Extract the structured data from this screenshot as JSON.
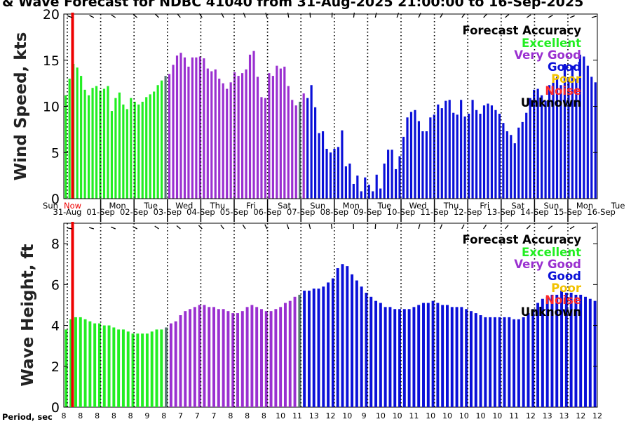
{
  "chart_data": {
    "type": "bar",
    "title": "& Wave Forecast for NDBC 41040 from 31-Aug-2025 21:00:00 to 16-Sep-2025",
    "x_axis": {
      "day_names": [
        "Sun",
        "Mon",
        "Tue",
        "Wed",
        "Thu",
        "Fri",
        "Sat",
        "Sun",
        "Mon",
        "Tue",
        "Wed",
        "Thu",
        "Fri",
        "Sat",
        "Sun",
        "Mon",
        "Tue"
      ],
      "dates": [
        "31-Aug",
        "01-Sep",
        "02-Sep",
        "03-Sep",
        "04-Sep",
        "05-Sep",
        "06-Sep",
        "07-Sep",
        "08-Sep",
        "09-Sep",
        "10-Sep",
        "11-Sep",
        "12-Sep",
        "13-Sep",
        "14-Sep",
        "15-Sep",
        "16-Sep"
      ]
    },
    "legend": {
      "title": "Forecast Accuracy",
      "placement": "top-right",
      "entries": [
        {
          "label": "Excellent",
          "color": "#22ee22"
        },
        {
          "label": "Very Good",
          "color": "#9a30d0"
        },
        {
          "label": "Good",
          "color": "#0a10d8"
        },
        {
          "label": "Poor",
          "color": "#f2c200"
        },
        {
          "label": "Noise",
          "color": "#ff2a2a"
        },
        {
          "label": "Unknown",
          "color": "#000000"
        }
      ]
    },
    "transition_color": "#557a72",
    "now_line_label": "Now",
    "now_line_color": "#ee0000",
    "wind": {
      "ylabel": "Wind Speed, kts",
      "ylim": [
        0,
        20
      ],
      "yticks": [
        0,
        5,
        10,
        15,
        20
      ],
      "values": [
        11.2,
        13,
        14.6,
        14.2,
        13.3,
        11.8,
        11.2,
        12,
        12.2,
        11.7,
        11.9,
        12.2,
        9.5,
        10.9,
        11.5,
        10.2,
        9.7,
        10.9,
        10.5,
        10.2,
        10.5,
        11,
        11.3,
        11.6,
        12.3,
        12.8,
        13.3,
        13.5,
        14.5,
        15.5,
        15.8,
        15.3,
        14.3,
        15.3,
        15.3,
        15.4,
        15.2,
        14.1,
        13.8,
        14,
        13,
        12.5,
        11.9,
        12.6,
        13.7,
        13.3,
        13.6,
        14,
        15.6,
        16,
        13.2,
        11,
        10.9,
        13.6,
        13.3,
        14.4,
        14.1,
        14.3,
        12.2,
        10.7,
        10.1,
        10.5,
        11.4,
        10.9,
        12.3,
        9.9,
        7.1,
        7.3,
        5.4,
        5,
        5.4,
        5.6,
        7.4,
        3.5,
        3.8,
        1.6,
        2.5,
        0.8,
        2.3,
        1.5,
        0.8,
        2.6,
        1.1,
        3.8,
        5.3,
        5.3,
        3.2,
        4.6,
        6.7,
        8.8,
        9.4,
        9.6,
        8.4,
        7.3,
        7.3,
        8.8,
        9.1,
        10.2,
        9.8,
        10.6,
        10.7,
        9.3,
        9.1,
        10.7,
        8.9,
        9.2,
        10.7,
        9.6,
        9.2,
        10.1,
        10.3,
        10.1,
        9.6,
        9.2,
        8.2,
        7.3,
        6.9,
        6,
        7.7,
        8.3,
        9.3,
        10.9,
        11.8,
        11.9,
        11.2,
        10.6,
        12.3,
        12.6,
        13.2,
        12.3,
        14.6,
        13,
        14.4,
        13,
        15.6,
        15.4,
        14.4,
        13.2,
        12.6
      ]
    },
    "wave": {
      "ylabel": "Wave Height, ft",
      "ylim": [
        0,
        9
      ],
      "yticks": [
        0,
        2,
        4,
        6,
        8
      ],
      "values": [
        3.8,
        4.3,
        4.4,
        4.4,
        4.3,
        4.2,
        4.1,
        4.1,
        4.0,
        4.0,
        3.9,
        3.8,
        3.8,
        3.7,
        3.6,
        3.6,
        3.6,
        3.6,
        3.7,
        3.8,
        3.8,
        3.9,
        4.1,
        4.2,
        4.5,
        4.7,
        4.8,
        4.9,
        5.0,
        5.0,
        4.9,
        4.9,
        4.8,
        4.8,
        4.7,
        4.6,
        4.6,
        4.7,
        4.9,
        5.0,
        4.9,
        4.8,
        4.7,
        4.7,
        4.8,
        4.9,
        5.1,
        5.2,
        5.4,
        5.5,
        5.7,
        5.7,
        5.8,
        5.8,
        5.9,
        6.1,
        6.3,
        6.8,
        7.0,
        6.9,
        6.5,
        6.2,
        5.9,
        5.6,
        5.4,
        5.2,
        5.1,
        4.9,
        4.9,
        4.8,
        4.8,
        4.8,
        4.8,
        4.9,
        5.0,
        5.1,
        5.1,
        5.2,
        5.1,
        5.0,
        5.0,
        4.9,
        4.9,
        4.9,
        4.8,
        4.7,
        4.6,
        4.5,
        4.4,
        4.4,
        4.4,
        4.4,
        4.4,
        4.4,
        4.3,
        4.3,
        4.4,
        4.6,
        4.8,
        5.1,
        5.3,
        5.4,
        5.5,
        5.5,
        5.7,
        5.6,
        5.6,
        5.5,
        5.5,
        5.4,
        5.3,
        5.2
      ]
    },
    "period": {
      "label": "Period, sec",
      "ticks": [
        "8",
        "8",
        "8",
        "8",
        "8",
        "9",
        "8",
        "7",
        "7",
        "7",
        "8",
        "8",
        "8",
        "10",
        "11",
        "13",
        "12",
        "10",
        "9",
        "10",
        "10",
        "11",
        "10",
        "10",
        "10",
        "10",
        "10",
        "11",
        "12",
        "13",
        "13",
        "12",
        "12"
      ]
    }
  }
}
